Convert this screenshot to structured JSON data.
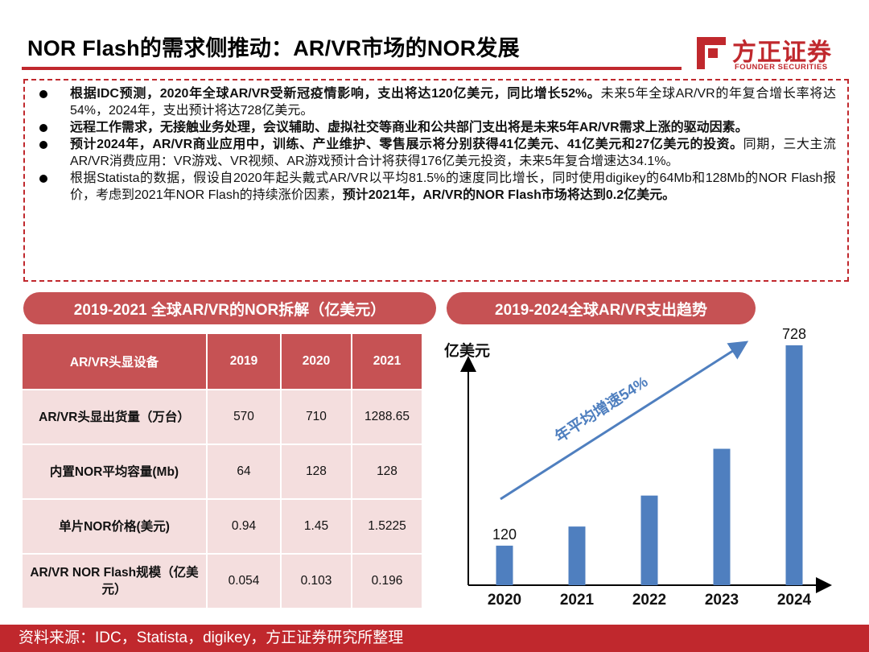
{
  "header": {
    "title": "NOR Flash的需求侧推动：AR/VR市场的NOR发展",
    "logo_cn": "方正证券",
    "logo_en": "FOUNDER SECURITIES"
  },
  "bullets": [
    {
      "bold": "根据IDC预测，2020年全球AR/VR受新冠疫情影响，支出将达120亿美元，同比增长52%。",
      "normal": "未来5年全球AR/VR的年复合增长率将达54%，2024年，支出预计将达728亿美元。",
      "bold2": ""
    },
    {
      "bold": "远程工作需求，无接触业务处理，会议辅助、虚拟社交等商业和公共部门支出将是未来5年AR/VR需求上涨的驱动因素。",
      "normal": "",
      "bold2": ""
    },
    {
      "bold": "预计2024年，AR/VR商业应用中，训练、产业维护、零售展示将分别获得41亿美元、41亿美元和27亿美元的投资。",
      "normal": "同期，三大主流AR/VR消费应用：VR游戏、VR视频、AR游戏预计合计将获得176亿美元投资，未来5年复合增速达34.1%。",
      "bold2": ""
    },
    {
      "bold": "",
      "normal": "根据Statista的数据，假设自2020年起头戴式AR/VR以平均81.5%的速度同比增长，同时使用digikey的64Mb和128Mb的NOR Flash报价，考虑到2021年NOR Flash的持续涨价因素，",
      "bold2": "预计2021年，AR/VR的NOR Flash市场将达到0.2亿美元。"
    }
  ],
  "left_section": {
    "title": "2019-2021 全球AR/VR的NOR拆解（亿美元）",
    "table": {
      "headers": [
        "AR/VR头显设备",
        "2019",
        "2020",
        "2021"
      ],
      "rows": [
        [
          "AR/VR头显出货量（万台）",
          "570",
          "710",
          "1288.65"
        ],
        [
          "内置NOR平均容量(Mb)",
          "64",
          "128",
          "128"
        ],
        [
          "单片NOR价格(美元)",
          "0.94",
          "1.45",
          "1.5225"
        ],
        [
          "AR/VR NOR Flash规模（亿美元）",
          "0.054",
          "0.103",
          "0.196"
        ]
      ]
    }
  },
  "right_section": {
    "title": "2019-2024全球AR/VR支出趋势"
  },
  "chart_data": {
    "type": "bar",
    "ylabel": "亿美元",
    "categories": [
      "2020",
      "2021",
      "2022",
      "2023",
      "2024"
    ],
    "values": [
      120,
      178,
      272,
      414,
      728
    ],
    "data_labels": {
      "2020": "120",
      "2024": "728"
    },
    "annotation": "年平均增速54%",
    "colors": {
      "bar": "#4f7fbf",
      "arrow": "#4f7fbf"
    }
  },
  "footer": {
    "source": "资料来源：IDC，Statista，digikey，方正证券研究所整理"
  },
  "colors": {
    "brand_red": "#c0282d",
    "header_fill": "#c65254",
    "table_cell": "#f4dede"
  }
}
